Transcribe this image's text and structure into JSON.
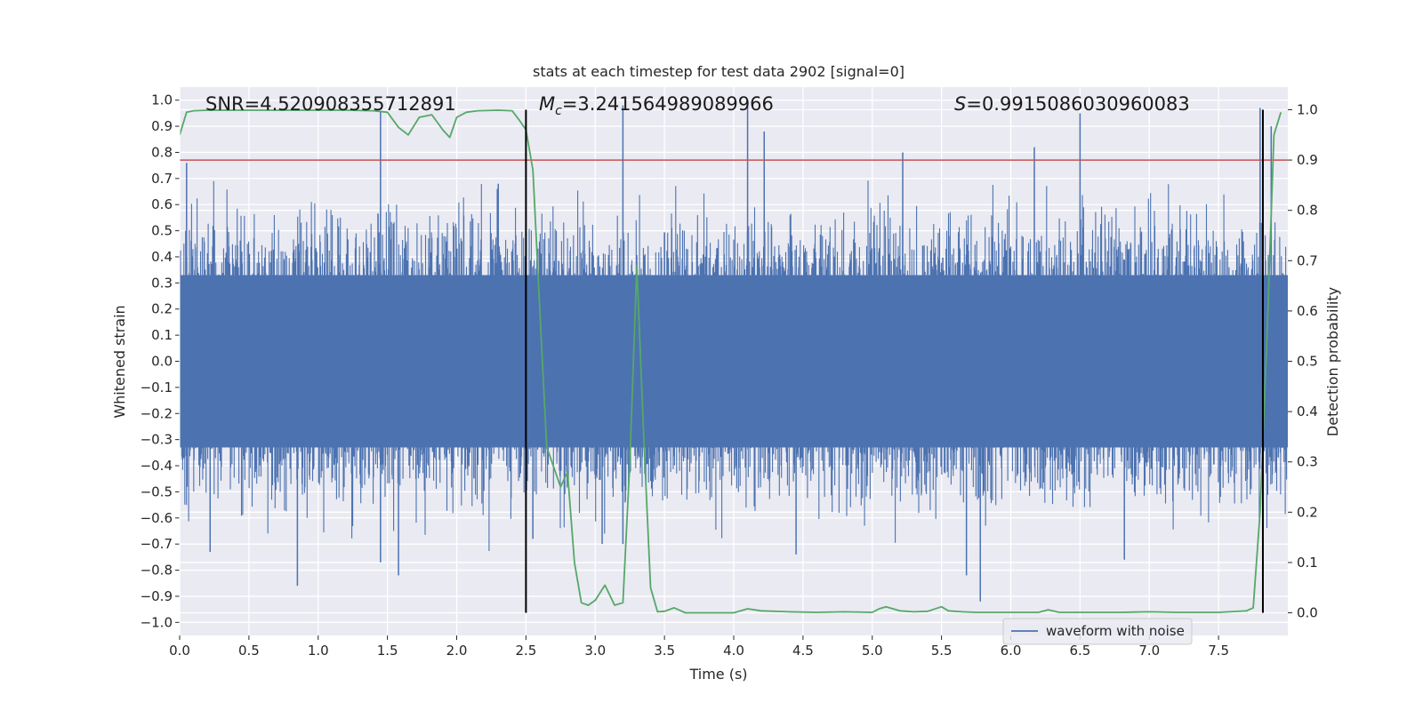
{
  "chart_data": {
    "type": "line",
    "title": "stats at each timestep for test data 2902 [signal=0]",
    "xlabel": "Time (s)",
    "ylabel": "Whitened strain",
    "y2label": "Detection probability",
    "xlim": [
      0.0,
      8.0
    ],
    "ylim": [
      -1.05,
      1.05
    ],
    "y2lim": [
      -0.045,
      1.045
    ],
    "xticks": [
      "0.0",
      "0.5",
      "1.0",
      "1.5",
      "2.0",
      "2.5",
      "3.0",
      "3.5",
      "4.0",
      "4.5",
      "5.0",
      "5.5",
      "6.0",
      "6.5",
      "7.0",
      "7.5"
    ],
    "yticks": [
      "1.0",
      "0.9",
      "0.8",
      "0.7",
      "0.6",
      "0.5",
      "0.4",
      "0.3",
      "0.2",
      "0.1",
      "0.0",
      "−0.1",
      "−0.2",
      "−0.3",
      "−0.4",
      "−0.5",
      "−0.6",
      "−0.7",
      "−0.8",
      "−0.9",
      "−1.0"
    ],
    "y2ticks": [
      "1.0",
      "0.9",
      "0.8",
      "0.7",
      "0.6",
      "0.5",
      "0.4",
      "0.3",
      "0.2",
      "0.1",
      "0.0"
    ],
    "annotations": {
      "snr": "SNR=4.520908355712891",
      "mc_symbol": "M",
      "mc_sub": "c",
      "mc_value": "=3.241564989089966",
      "s_symbol": "S",
      "s_value": "=0.9915086030960083"
    },
    "legend": {
      "label": "waveform with noise",
      "location": "lower-right"
    },
    "threshold": {
      "y2": 0.9,
      "color": "#c44e52"
    },
    "vertical_lines": [
      2.5,
      7.82
    ],
    "waveform_series": {
      "name": "waveform with noise",
      "color": "#4c72b0",
      "duration_s": 8.0,
      "core_envelope": [
        -0.33,
        0.33
      ],
      "outlier_spikes": [
        {
          "t": 0.05,
          "v": 0.76
        },
        {
          "t": 0.22,
          "v": -0.73
        },
        {
          "t": 0.85,
          "v": -0.86
        },
        {
          "t": 1.45,
          "v": 0.96
        },
        {
          "t": 1.45,
          "v": -0.77
        },
        {
          "t": 1.58,
          "v": -0.82
        },
        {
          "t": 2.3,
          "v": 0.68
        },
        {
          "t": 2.55,
          "v": -0.68
        },
        {
          "t": 3.05,
          "v": -0.7
        },
        {
          "t": 3.2,
          "v": 0.98
        },
        {
          "t": 3.2,
          "v": -0.7
        },
        {
          "t": 4.1,
          "v": 1.0
        },
        {
          "t": 4.22,
          "v": 0.88
        },
        {
          "t": 4.45,
          "v": -0.74
        },
        {
          "t": 5.22,
          "v": 0.8
        },
        {
          "t": 5.68,
          "v": -0.82
        },
        {
          "t": 5.78,
          "v": -0.92
        },
        {
          "t": 6.17,
          "v": 0.82
        },
        {
          "t": 6.5,
          "v": 0.95
        },
        {
          "t": 6.82,
          "v": -0.76
        },
        {
          "t": 7.8,
          "v": 0.97
        },
        {
          "t": 7.88,
          "v": 0.9
        }
      ]
    },
    "probability_series": {
      "name": "detection probability",
      "color": "#55a868",
      "t": [
        0.0,
        0.05,
        0.1,
        0.2,
        0.4,
        0.6,
        0.8,
        1.0,
        1.2,
        1.4,
        1.5,
        1.58,
        1.65,
        1.73,
        1.82,
        1.9,
        1.95,
        2.0,
        2.07,
        2.15,
        2.3,
        2.4,
        2.45,
        2.5,
        2.55,
        2.6,
        2.65,
        2.75,
        2.8,
        2.85,
        2.9,
        2.95,
        3.0,
        3.07,
        3.14,
        3.2,
        3.25,
        3.3,
        3.35,
        3.4,
        3.45,
        3.5,
        3.57,
        3.65,
        3.75,
        4.0,
        4.1,
        4.2,
        4.4,
        4.6,
        4.8,
        5.0,
        5.05,
        5.1,
        5.2,
        5.3,
        5.4,
        5.5,
        5.55,
        5.65,
        5.75,
        5.85,
        6.0,
        6.2,
        6.27,
        6.35,
        6.5,
        6.8,
        7.0,
        7.2,
        7.5,
        7.7,
        7.75,
        7.8,
        7.85,
        7.9,
        7.95
      ],
      "p": [
        0.95,
        0.995,
        0.998,
        0.999,
        0.999,
        0.999,
        0.999,
        0.999,
        0.999,
        0.998,
        0.995,
        0.965,
        0.95,
        0.985,
        0.99,
        0.96,
        0.945,
        0.985,
        0.995,
        0.998,
        0.999,
        0.998,
        0.98,
        0.96,
        0.88,
        0.6,
        0.33,
        0.25,
        0.28,
        0.1,
        0.02,
        0.015,
        0.025,
        0.055,
        0.015,
        0.02,
        0.3,
        0.69,
        0.35,
        0.05,
        0.002,
        0.003,
        0.01,
        0.0,
        0.0,
        0.0,
        0.008,
        0.004,
        0.002,
        0.001,
        0.002,
        0.001,
        0.008,
        0.012,
        0.004,
        0.002,
        0.003,
        0.012,
        0.004,
        0.002,
        0.001,
        0.001,
        0.001,
        0.001,
        0.006,
        0.001,
        0.001,
        0.001,
        0.002,
        0.001,
        0.001,
        0.004,
        0.01,
        0.2,
        0.55,
        0.95,
        0.995
      ]
    }
  }
}
